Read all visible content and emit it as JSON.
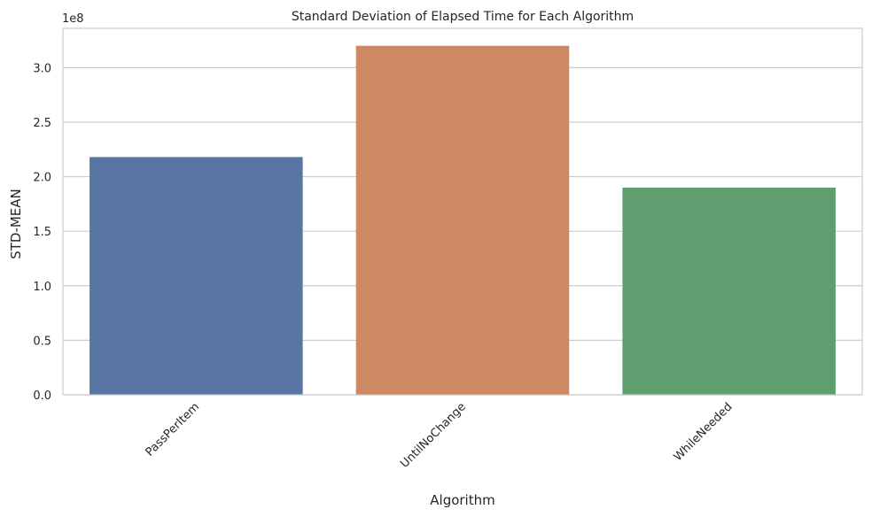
{
  "chart_data": {
    "type": "bar",
    "title": "Standard Deviation of Elapsed Time for Each Algorithm",
    "xlabel": "Algorithm",
    "ylabel": "STD-MEAN",
    "y_offset_label": "1e8",
    "categories": [
      "PassPerItem",
      "UntilNoChange",
      "WhileNeeded"
    ],
    "values": [
      218000000,
      320000000,
      190000000
    ],
    "colors": [
      "#5875a4",
      "#cc8963",
      "#5f9e6e"
    ],
    "ylim": [
      0,
      336000000
    ],
    "yticks": [
      0,
      50000000,
      100000000,
      150000000,
      200000000,
      250000000,
      300000000
    ],
    "ytick_labels": [
      "0.0",
      "0.5",
      "1.0",
      "1.5",
      "2.0",
      "2.5",
      "3.0"
    ],
    "grid": "horizontal",
    "x_tick_rotation_deg": 45
  }
}
